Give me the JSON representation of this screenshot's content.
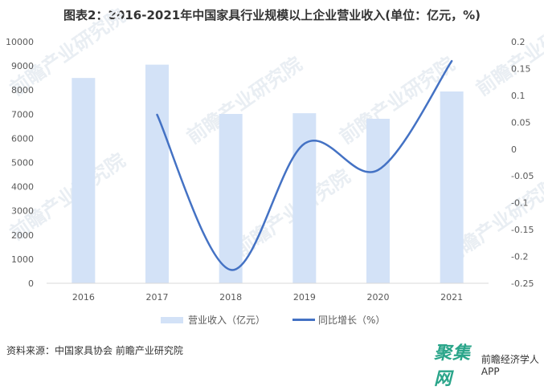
{
  "title": "图表2：2016-2021年中国家具行业规模以上企业营业收入(单位：亿元，%)",
  "chart_data": {
    "type": "bar+line",
    "title": "图表2：2016-2021年中国家具行业规模以上企业营业收入(单位：亿元，%)",
    "categories": [
      "2016",
      "2017",
      "2018",
      "2019",
      "2020",
      "2021"
    ],
    "series": [
      {
        "name": "营业收入（亿元）",
        "type": "bar",
        "axis": "left",
        "color": "#d3e2f7",
        "values": [
          8500,
          9050,
          7010,
          7040,
          6810,
          7940
        ]
      },
      {
        "name": "同比增长（%）",
        "type": "line",
        "axis": "right",
        "color": "#4472c4",
        "values": [
          null,
          0.064,
          -0.225,
          0.01,
          -0.039,
          0.164
        ]
      }
    ],
    "left_axis": {
      "min": 0,
      "max": 10000,
      "ticks": [
        "0",
        "1000",
        "2000",
        "3000",
        "4000",
        "5000",
        "6000",
        "7000",
        "8000",
        "9000",
        "10000"
      ]
    },
    "right_axis": {
      "min": -0.25,
      "max": 0.2,
      "ticks": [
        "0.2",
        "0.15",
        "0.1",
        "0.05",
        "0",
        "-0.05",
        "-0.1",
        "-0.15",
        "-0.2",
        "-0.25"
      ]
    },
    "xlabel": "",
    "ylabel": "",
    "grid": false,
    "legend_position": "bottom"
  },
  "legend": {
    "bar_label": "营业收入（亿元）",
    "line_label": "同比增长（%）"
  },
  "footer": {
    "source": "资料来源：中国家具协会 前瞻产业研究院",
    "brand_logo": "聚集网",
    "brand_app": "前瞻经济学人APP"
  },
  "watermark": "前瞻产业研究院"
}
